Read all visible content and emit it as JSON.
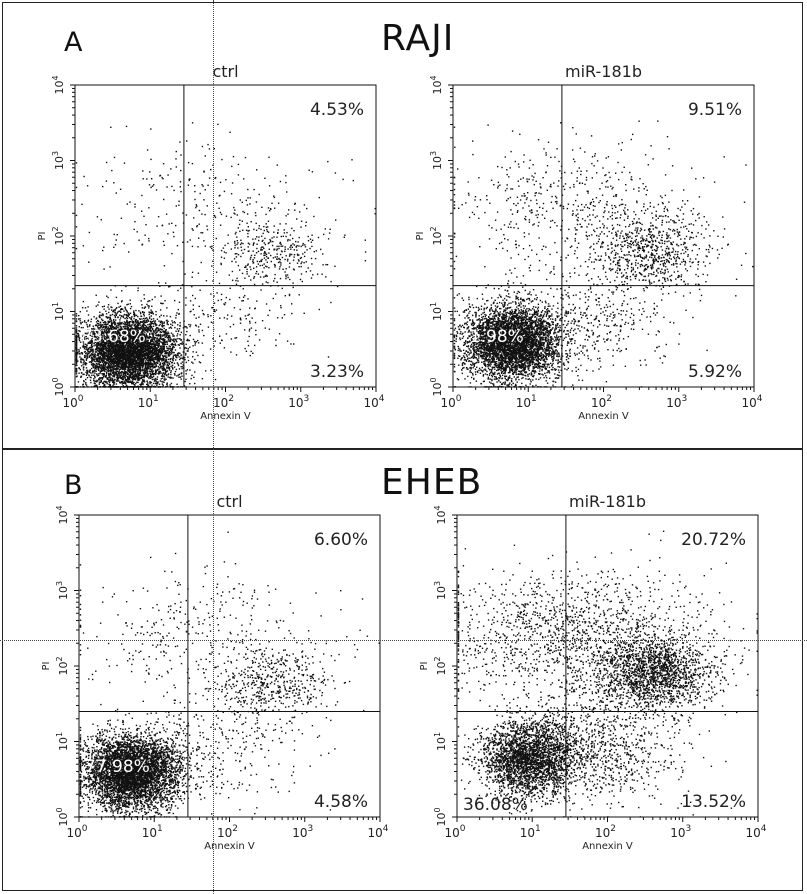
{
  "panel_a": {
    "letter": "A",
    "cell_line": "RAJI"
  },
  "panel_b": {
    "letter": "B",
    "cell_line": "EHEB"
  },
  "chart_data": [
    {
      "type": "scatter",
      "panel": "A",
      "cell_line": "RAJI",
      "title": "ctrl",
      "xlabel": "Annexin V",
      "ylabel": "PI",
      "xscale": "log",
      "yscale": "log",
      "xlim": [
        1,
        10000
      ],
      "ylim": [
        1,
        10000
      ],
      "xticks": [
        1,
        10,
        100,
        1000,
        10000
      ],
      "yticks": [
        1,
        10,
        100,
        1000,
        10000
      ],
      "gate": {
        "x": 28,
        "y": 22
      },
      "quadrants": {
        "upper_right": "4.53%",
        "lower_left": "83.68%",
        "lower_right": "3.23%"
      },
      "density": {
        "live_cluster_center": [
          5,
          3
        ],
        "annexin_positive_cluster_center": [
          400,
          60
        ]
      }
    },
    {
      "type": "scatter",
      "panel": "A",
      "cell_line": "RAJI",
      "title": "miR-181b",
      "xlabel": "Annexin V",
      "ylabel": "PI",
      "xscale": "log",
      "yscale": "log",
      "xlim": [
        1,
        10000
      ],
      "ylim": [
        1,
        10000
      ],
      "xticks": [
        1,
        10,
        100,
        1000,
        10000
      ],
      "yticks": [
        1,
        10,
        100,
        1000,
        10000
      ],
      "gate": {
        "x": 28,
        "y": 22
      },
      "quadrants": {
        "upper_right": "9.51%",
        "lower_left": "71.98%",
        "lower_right": "5.92%"
      },
      "density": {
        "live_cluster_center": [
          6,
          4
        ],
        "annexin_positive_cluster_center": [
          400,
          60
        ]
      }
    },
    {
      "type": "scatter",
      "panel": "B",
      "cell_line": "EHEB",
      "title": "ctrl",
      "xlabel": "Annexin V",
      "ylabel": "PI",
      "xscale": "log",
      "yscale": "log",
      "xlim": [
        1,
        10000
      ],
      "ylim": [
        1,
        10000
      ],
      "xticks": [
        1,
        10,
        100,
        1000,
        10000
      ],
      "yticks": [
        1,
        10,
        100,
        1000,
        10000
      ],
      "gate": {
        "x": 28,
        "y": 25
      },
      "quadrants": {
        "upper_right": "6.60%",
        "lower_left": "77.98%",
        "lower_right": "4.58%"
      },
      "density": {
        "live_cluster_center": [
          5,
          4
        ],
        "annexin_positive_cluster_center": [
          400,
          60
        ]
      }
    },
    {
      "type": "scatter",
      "panel": "B",
      "cell_line": "EHEB",
      "title": "miR-181b",
      "xlabel": "Annexin V",
      "ylabel": "PI",
      "xscale": "log",
      "yscale": "log",
      "xlim": [
        1,
        10000
      ],
      "ylim": [
        1,
        10000
      ],
      "xticks": [
        1,
        10,
        100,
        1000,
        10000
      ],
      "yticks": [
        1,
        10,
        100,
        1000,
        10000
      ],
      "gate": {
        "x": 28,
        "y": 25
      },
      "quadrants": {
        "upper_right": "20.72%",
        "lower_left": "36.08%",
        "lower_right": "13.52%"
      },
      "density": {
        "live_cluster_center": [
          9,
          6
        ],
        "annexin_positive_cluster_center": [
          400,
          80
        ]
      }
    }
  ]
}
